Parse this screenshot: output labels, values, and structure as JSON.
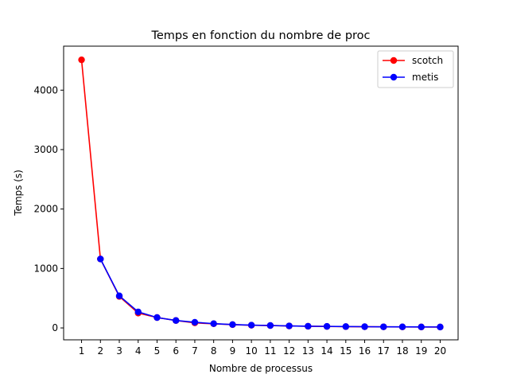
{
  "chart_data": {
    "type": "line",
    "title": "Temps en fonction du nombre de proc",
    "xlabel": "Nombre de processus",
    "ylabel": "Temps (s)",
    "x": [
      1,
      2,
      3,
      4,
      5,
      6,
      7,
      8,
      9,
      10,
      11,
      12,
      13,
      14,
      15,
      16,
      17,
      18,
      19,
      20
    ],
    "xlim": [
      0.05,
      20.95
    ],
    "ylim": [
      -200,
      4740
    ],
    "yticks": [
      0,
      1000,
      2000,
      3000,
      4000
    ],
    "grid": false,
    "legend_position": "top-right",
    "series": [
      {
        "name": "scotch",
        "color": "#ff0000",
        "marker": "circle",
        "values": [
          4510,
          1160,
          530,
          250,
          175,
          125,
          85,
          70,
          55,
          45,
          40,
          33,
          28,
          25,
          22,
          20,
          18,
          17,
          16,
          15
        ]
      },
      {
        "name": "metis",
        "color": "#0000ff",
        "marker": "circle",
        "values": [
          null,
          1160,
          540,
          270,
          175,
          125,
          95,
          72,
          57,
          47,
          41,
          34,
          29,
          26,
          23,
          21,
          19,
          18,
          17,
          16
        ]
      }
    ]
  }
}
